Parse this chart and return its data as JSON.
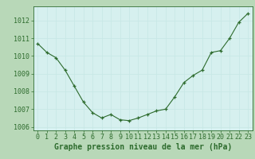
{
  "x": [
    0,
    1,
    2,
    3,
    4,
    5,
    6,
    7,
    8,
    9,
    10,
    11,
    12,
    13,
    14,
    15,
    16,
    17,
    18,
    19,
    20,
    21,
    22,
    23
  ],
  "y": [
    1010.7,
    1010.2,
    1009.9,
    1009.2,
    1008.3,
    1007.4,
    1006.8,
    1006.5,
    1006.7,
    1006.4,
    1006.35,
    1006.5,
    1006.7,
    1006.9,
    1007.0,
    1007.7,
    1008.5,
    1008.9,
    1009.2,
    1010.2,
    1010.3,
    1011.0,
    1011.9,
    1012.4
  ],
  "line_color": "#2d6b2d",
  "marker": "+",
  "marker_color": "#2d6b2d",
  "background_color": "#d6f0ef",
  "grid_color": "#c8e8e6",
  "axis_color": "#2d6b2d",
  "xlabel": "Graphe pression niveau de la mer (hPa)",
  "xlabel_fontsize": 7,
  "ylabel_ticks": [
    1006,
    1007,
    1008,
    1009,
    1010,
    1011,
    1012
  ],
  "xlim": [
    -0.5,
    23.5
  ],
  "ylim": [
    1005.8,
    1012.8
  ],
  "xticks": [
    0,
    1,
    2,
    3,
    4,
    5,
    6,
    7,
    8,
    9,
    10,
    11,
    12,
    13,
    14,
    15,
    16,
    17,
    18,
    19,
    20,
    21,
    22,
    23
  ],
  "tick_fontsize": 6,
  "outer_bg": "#b8d8b8"
}
